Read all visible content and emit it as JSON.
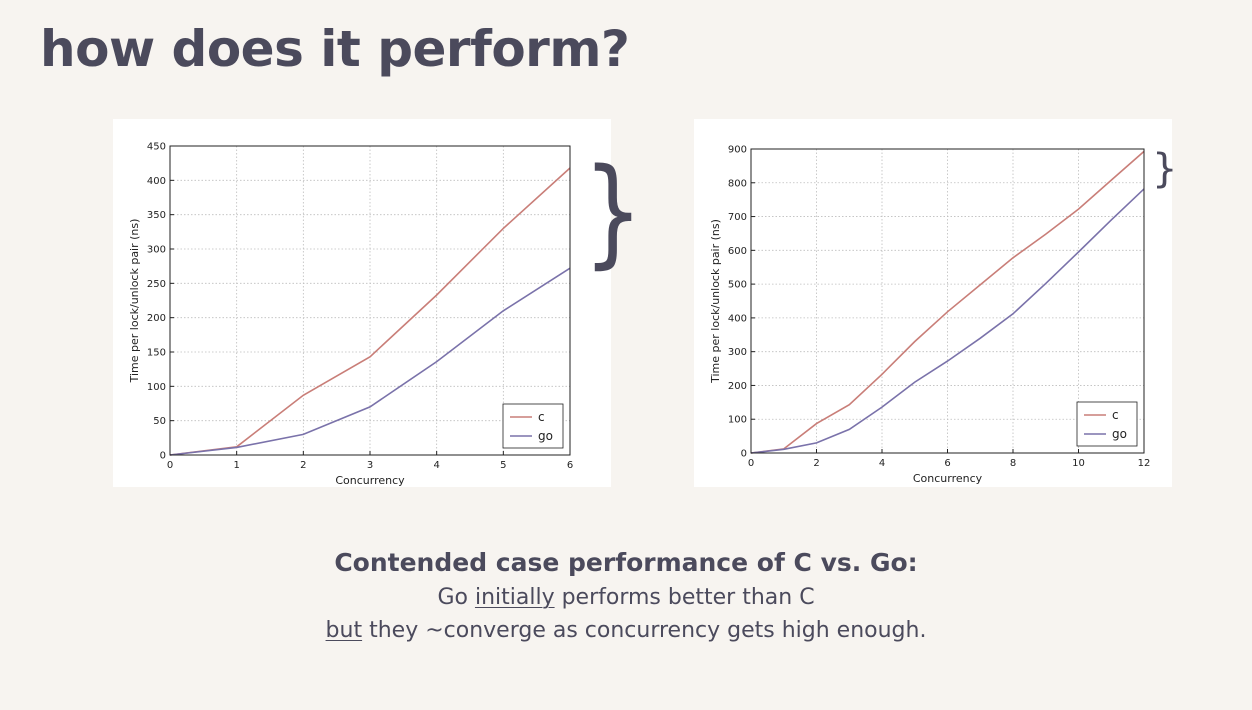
{
  "slide": {
    "title": "how does it perform?",
    "caption": {
      "headline": "Contended case performance of C vs. Go:",
      "line1_pre": "Go ",
      "line1_emph": "initially",
      "line1_post": " performs better than C",
      "line2_emph": "but",
      "line2_post": " they ~converge as concurrency gets high enough."
    },
    "brace_glyph": "}"
  },
  "colors": {
    "c": "#c97e78",
    "go": "#7a72aa",
    "grid": "#bdbdbd",
    "background": "#f7f4f0",
    "text": "#4b4a5c"
  },
  "chart_data": [
    {
      "type": "line",
      "xlabel": "Concurrency",
      "ylabel": "Time per lock/unlock pair (ns)",
      "xlim": [
        0,
        6
      ],
      "ylim": [
        0,
        450
      ],
      "xticks": [
        0,
        1,
        2,
        3,
        4,
        5,
        6
      ],
      "yticks": [
        0,
        50,
        100,
        150,
        200,
        250,
        300,
        350,
        400,
        450
      ],
      "grid": true,
      "legend_position": "lower-right",
      "series": [
        {
          "name": "c",
          "color": "#c97e78",
          "x": [
            0,
            1,
            2,
            3,
            4,
            5,
            6
          ],
          "y": [
            0,
            12,
            87,
            143,
            233,
            330,
            418
          ]
        },
        {
          "name": "go",
          "color": "#7a72aa",
          "x": [
            0,
            1,
            2,
            3,
            4,
            5,
            6
          ],
          "y": [
            0,
            11,
            30,
            70,
            136,
            210,
            272
          ]
        }
      ]
    },
    {
      "type": "line",
      "xlabel": "Concurrency",
      "ylabel": "Time per lock/unlock pair (ns)",
      "xlim": [
        0,
        12
      ],
      "ylim": [
        0,
        900
      ],
      "xticks": [
        0,
        2,
        4,
        6,
        8,
        10,
        12
      ],
      "yticks": [
        0,
        100,
        200,
        300,
        400,
        500,
        600,
        700,
        800,
        900
      ],
      "grid": true,
      "legend_position": "lower-right",
      "series": [
        {
          "name": "c",
          "color": "#c97e78",
          "x": [
            0,
            1,
            2,
            3,
            4,
            5,
            6,
            7,
            8,
            9,
            10,
            11,
            12
          ],
          "y": [
            0,
            12,
            87,
            143,
            233,
            330,
            418,
            498,
            578,
            648,
            722,
            808,
            893
          ]
        },
        {
          "name": "go",
          "color": "#7a72aa",
          "x": [
            0,
            1,
            2,
            3,
            4,
            5,
            6,
            7,
            8,
            9,
            10,
            11,
            12
          ],
          "y": [
            0,
            11,
            30,
            70,
            136,
            210,
            272,
            340,
            412,
            502,
            595,
            690,
            782
          ]
        }
      ]
    }
  ]
}
